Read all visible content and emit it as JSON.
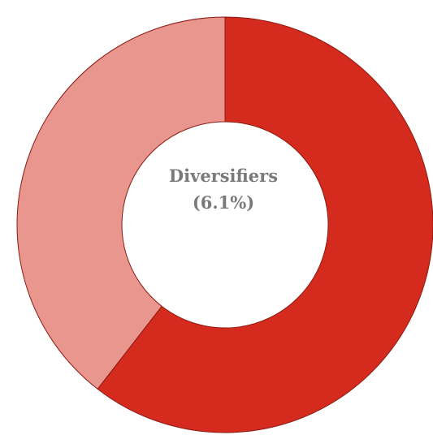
{
  "chart_data": {
    "type": "pie",
    "donut": true,
    "center_label": {
      "line1": "Diversifiers",
      "line2": "(6.1%)"
    },
    "slices": [
      {
        "value": 60.5,
        "color": "#d52b1e"
      },
      {
        "value": 39.5,
        "color": "#e9968f"
      }
    ],
    "start": "top",
    "direction": "clockwise",
    "border_color": "#8b1a12",
    "legend": "none"
  }
}
